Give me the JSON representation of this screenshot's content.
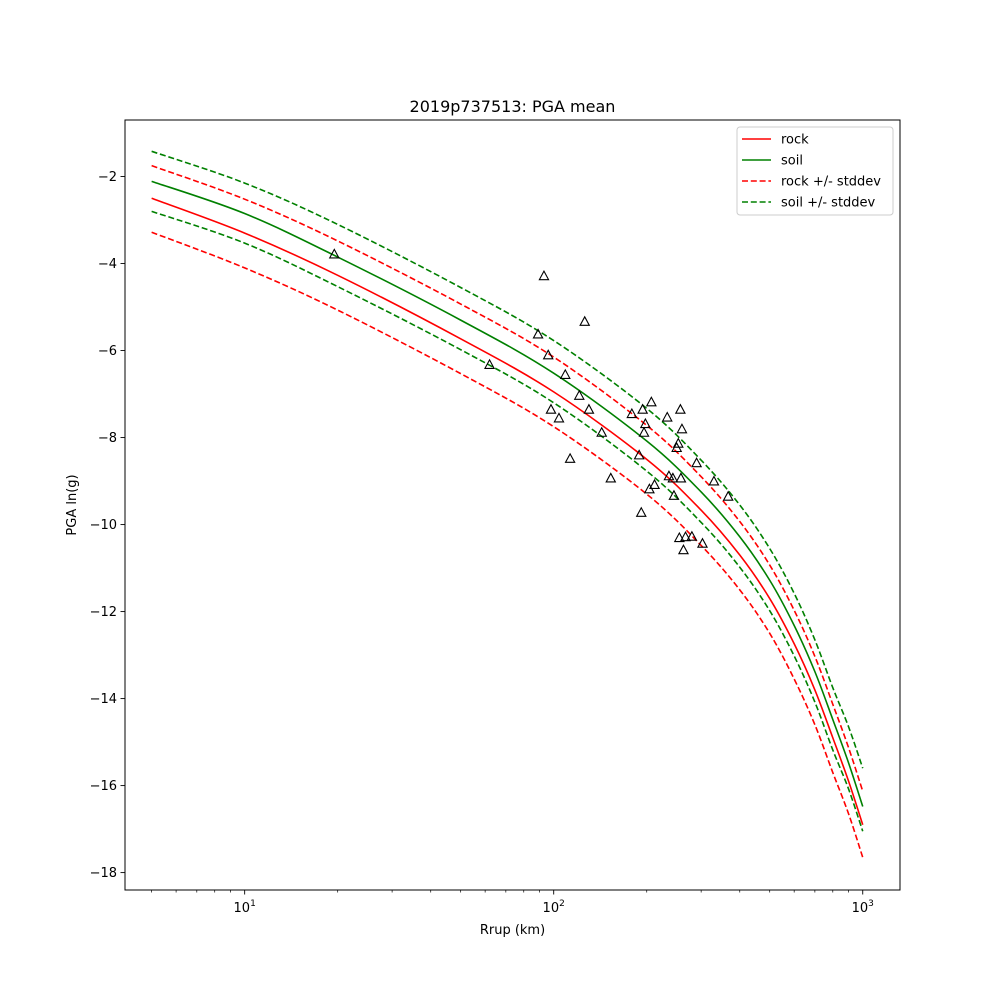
{
  "chart_data": {
    "type": "line",
    "title": "2019p737513: PGA mean",
    "xlabel": "Rrup (km)",
    "ylabel": "PGA ln(g)",
    "xscale": "log",
    "xlim": [
      4.1,
      1320
    ],
    "ylim": [
      -18.4,
      -0.7
    ],
    "xticks": [
      {
        "value": 10,
        "base": "10",
        "exp": "1"
      },
      {
        "value": 100,
        "base": "10",
        "exp": "2"
      },
      {
        "value": 1000,
        "base": "10",
        "exp": "3"
      }
    ],
    "yticks": [
      {
        "value": -2,
        "label": "−2"
      },
      {
        "value": -4,
        "label": "−4"
      },
      {
        "value": -6,
        "label": "−6"
      },
      {
        "value": -8,
        "label": "−8"
      },
      {
        "value": -10,
        "label": "−10"
      },
      {
        "value": -12,
        "label": "−12"
      },
      {
        "value": -14,
        "label": "−14"
      },
      {
        "value": -16,
        "label": "−16"
      },
      {
        "value": -18,
        "label": "−18"
      }
    ],
    "grid": false,
    "legend_position": "top-right",
    "series": [
      {
        "name": "rock",
        "color": "#ff0000",
        "style": "solid",
        "x": [
          5,
          10,
          20,
          50,
          100,
          200,
          300,
          400,
          500,
          600,
          700,
          800,
          900,
          1000
        ],
        "y": [
          -2.5,
          -3.3,
          -4.27,
          -5.73,
          -6.95,
          -8.5,
          -9.67,
          -10.7,
          -11.7,
          -12.74,
          -13.8,
          -14.9,
          -15.9,
          -16.9
        ]
      },
      {
        "name": "soil",
        "color": "#008000",
        "style": "solid",
        "x": [
          5,
          10,
          20,
          50,
          100,
          200,
          300,
          400,
          500,
          600,
          700,
          800,
          900,
          1000
        ],
        "y": [
          -2.11,
          -2.85,
          -3.85,
          -5.3,
          -6.52,
          -8.08,
          -9.25,
          -10.28,
          -11.28,
          -12.32,
          -13.38,
          -14.48,
          -15.48,
          -16.48
        ]
      },
      {
        "name": "rock +/- stddev",
        "color": "#ff0000",
        "style": "dashed",
        "x": [
          5,
          10,
          20,
          50,
          100,
          200,
          300,
          400,
          500,
          600,
          700,
          800,
          900,
          1000
        ],
        "y": [
          -1.75,
          -2.52,
          -3.48,
          -4.93,
          -6.15,
          -7.72,
          -8.9,
          -9.93,
          -10.93,
          -11.97,
          -13.03,
          -14.13,
          -15.13,
          -16.13
        ],
        "y2": [
          -3.28,
          -4.1,
          -5.07,
          -6.53,
          -7.75,
          -9.3,
          -10.48,
          -11.5,
          -12.5,
          -13.55,
          -14.6,
          -15.7,
          -16.65,
          -17.65
        ]
      },
      {
        "name": "soil +/- stddev",
        "color": "#008000",
        "style": "dashed",
        "x": [
          5,
          10,
          20,
          50,
          100,
          200,
          300,
          400,
          500,
          600,
          700,
          800,
          900,
          1000
        ],
        "y": [
          -1.42,
          -2.15,
          -3.1,
          -4.55,
          -5.77,
          -7.33,
          -8.52,
          -9.55,
          -10.55,
          -11.58,
          -12.65,
          -13.75,
          -14.65,
          -15.6
        ],
        "y2": [
          -2.8,
          -3.53,
          -4.53,
          -5.98,
          -7.2,
          -8.77,
          -9.95,
          -10.98,
          -11.98,
          -13.02,
          -14.08,
          -15.18,
          -16.08,
          -17.05
        ]
      }
    ],
    "observations": {
      "marker": "triangle",
      "color": "#000000",
      "x": [
        19.5,
        62,
        89,
        93,
        96,
        98,
        104,
        109,
        113,
        121,
        126,
        130,
        143,
        153,
        179,
        189,
        192,
        194,
        196,
        198,
        204,
        207,
        212,
        233,
        236,
        243,
        245,
        250,
        253,
        255,
        257,
        258,
        260,
        263,
        267,
        280,
        290,
        303,
        330,
        367
      ],
      "y": [
        -3.78,
        -6.32,
        -5.62,
        -4.28,
        -6.1,
        -7.35,
        -7.55,
        -6.55,
        -8.48,
        -7.03,
        -5.33,
        -7.35,
        -7.88,
        -8.93,
        -7.45,
        -8.4,
        -9.72,
        -7.35,
        -7.88,
        -7.68,
        -9.18,
        -7.18,
        -9.08,
        -7.53,
        -8.88,
        -8.93,
        -9.33,
        -8.23,
        -8.13,
        -10.3,
        -7.35,
        -8.93,
        -7.8,
        -10.58,
        -10.28,
        -10.27,
        -8.58,
        -10.43,
        -9.0,
        -9.35
      ]
    }
  }
}
